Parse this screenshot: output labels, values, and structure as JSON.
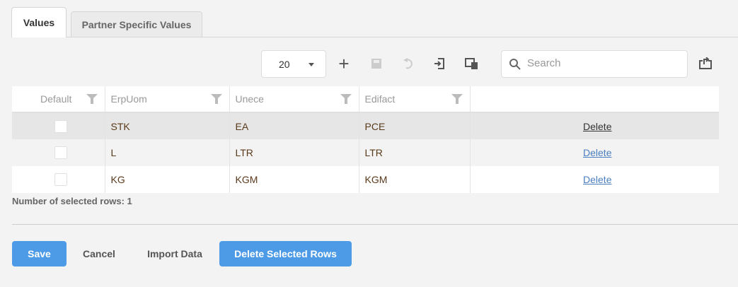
{
  "tabs": [
    {
      "label": "Values",
      "active": true
    },
    {
      "label": "Partner Specific Values",
      "active": false
    }
  ],
  "toolbar": {
    "page_size": "20",
    "search_placeholder": "Search",
    "icons": [
      "plus-icon",
      "save-icon",
      "undo-icon",
      "import-icon",
      "copy-icon",
      "export-icon"
    ]
  },
  "table": {
    "columns": [
      "Default",
      "ErpUom",
      "Unece",
      "Edifact",
      ""
    ],
    "rows": [
      {
        "default": false,
        "erpuom": "STK",
        "unece": "EA",
        "edifact": "PCE",
        "action": "Delete",
        "selected": true
      },
      {
        "default": false,
        "erpuom": "L",
        "unece": "LTR",
        "edifact": "LTR",
        "action": "Delete"
      },
      {
        "default": false,
        "erpuom": "KG",
        "unece": "KGM",
        "edifact": "KGM",
        "action": "Delete"
      }
    ]
  },
  "selected_count": "Number of selected rows: 1",
  "buttons": {
    "save": "Save",
    "cancel": "Cancel",
    "import": "Import Data",
    "delete_selected": "Delete Selected Rows"
  },
  "colors": {
    "primary": "#4d9be6",
    "link": "#4a7fc1"
  }
}
